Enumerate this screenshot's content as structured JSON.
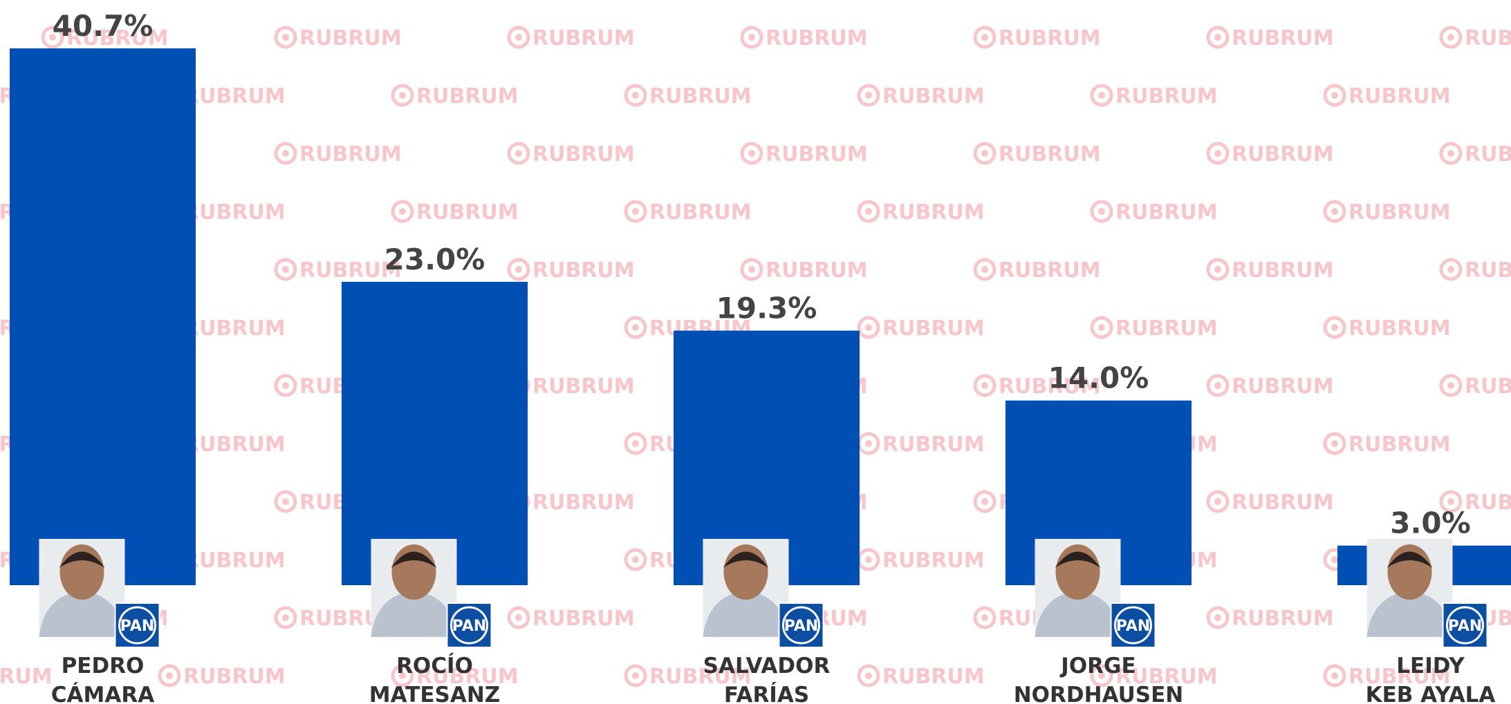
{
  "chart_data": {
    "type": "bar",
    "categories": [
      [
        "PEDRO",
        "CÁMARA"
      ],
      [
        "ROCÍO",
        "MATESANZ"
      ],
      [
        "SALVADOR",
        "FARÍAS"
      ],
      [
        "JORGE",
        "NORDHAUSEN"
      ],
      [
        "LEIDY",
        "KEB AYALA"
      ]
    ],
    "values": [
      40.7,
      23.0,
      19.3,
      14.0,
      3.0
    ],
    "value_labels": [
      "40.7%",
      "23.0%",
      "19.3%",
      "14.0%",
      "3.0%"
    ],
    "color": "#004fb5",
    "ylim": [
      0,
      40.7
    ],
    "party": "PAN",
    "watermark": "RUBRUM"
  }
}
